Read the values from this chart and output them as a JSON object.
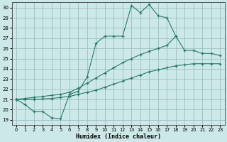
{
  "xlabel": "Humidex (Indice chaleur)",
  "xlim": [
    -0.5,
    23.5
  ],
  "ylim": [
    18.5,
    30.5
  ],
  "xticks": [
    0,
    1,
    2,
    3,
    4,
    5,
    6,
    7,
    8,
    9,
    10,
    11,
    12,
    13,
    14,
    15,
    16,
    17,
    18,
    19,
    20,
    21,
    22,
    23
  ],
  "yticks": [
    19,
    20,
    21,
    22,
    23,
    24,
    25,
    26,
    27,
    28,
    29,
    30
  ],
  "background_color": "#cce8e8",
  "grid_color": "#9bbfbf",
  "line_color": "#2a7a6a",
  "curve1_x": [
    0,
    1,
    2,
    3,
    4,
    5,
    6,
    7,
    8,
    9,
    10,
    11,
    12,
    13,
    14,
    15,
    16,
    17,
    18
  ],
  "curve1_y": [
    21.0,
    20.5,
    19.8,
    19.8,
    19.2,
    19.1,
    21.5,
    21.8,
    23.2,
    26.5,
    27.2,
    27.2,
    27.2,
    30.2,
    29.5,
    30.3,
    29.2,
    29.0,
    27.2
  ],
  "curve2_x": [
    0,
    1,
    2,
    3,
    4,
    5,
    6,
    7,
    8,
    9,
    10,
    11,
    12,
    13,
    14,
    15,
    16,
    17,
    18,
    19,
    20,
    21,
    22,
    23
  ],
  "curve2_y": [
    21.0,
    21.1,
    21.2,
    21.3,
    21.4,
    21.5,
    21.7,
    22.1,
    22.6,
    23.1,
    23.6,
    24.1,
    24.6,
    25.0,
    25.4,
    25.7,
    26.0,
    26.3,
    27.2,
    25.8,
    25.8,
    25.5,
    25.5,
    25.3
  ],
  "curve3_x": [
    0,
    1,
    2,
    3,
    4,
    5,
    6,
    7,
    8,
    9,
    10,
    11,
    12,
    13,
    14,
    15,
    16,
    17,
    18,
    19,
    20,
    21,
    22,
    23
  ],
  "curve3_y": [
    21.0,
    21.0,
    21.0,
    21.05,
    21.1,
    21.2,
    21.3,
    21.5,
    21.7,
    21.9,
    22.2,
    22.5,
    22.8,
    23.1,
    23.4,
    23.7,
    23.9,
    24.1,
    24.3,
    24.4,
    24.5,
    24.5,
    24.5,
    24.5
  ]
}
